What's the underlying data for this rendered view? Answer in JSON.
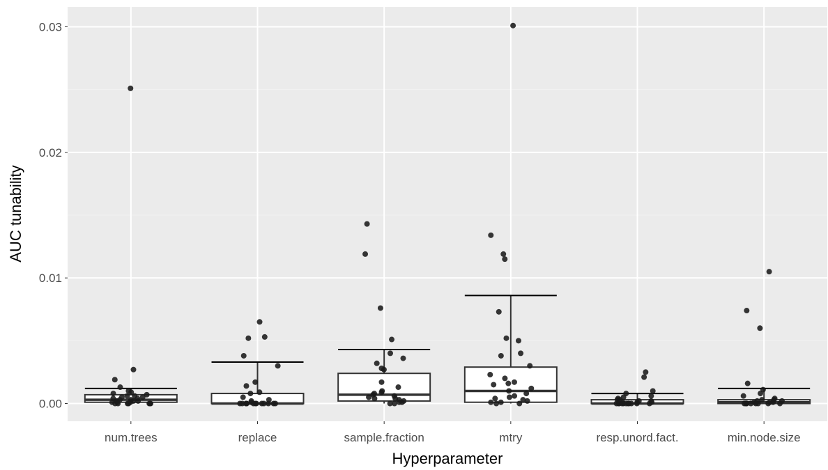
{
  "chart_data": {
    "type": "boxplot",
    "title": "",
    "xlabel": "Hyperparameter",
    "ylabel": "AUC tunability",
    "ylim": [
      -0.0017,
      0.0319
    ],
    "yticks": [
      0.0,
      0.01,
      0.02,
      0.03
    ],
    "ytick_labels": [
      "0.00",
      "0.01",
      "0.02",
      "0.03"
    ],
    "grid": true,
    "categories": [
      "num.trees",
      "replace",
      "sample.fraction",
      "mtry",
      "resp.unord.fact.",
      "min.node.size"
    ],
    "boxes": [
      {
        "lower_whisker": 0.0,
        "q1": 0.0001,
        "median": 0.0003,
        "q3": 0.0007,
        "upper_whisker": 0.0012
      },
      {
        "lower_whisker": 0.0,
        "q1": 0.0,
        "median": 0.0,
        "q3": 0.0008,
        "upper_whisker": 0.0033
      },
      {
        "lower_whisker": 0.0,
        "q1": 0.0002,
        "median": 0.0007,
        "q3": 0.0024,
        "upper_whisker": 0.0043
      },
      {
        "lower_whisker": 0.0,
        "q1": 0.0001,
        "median": 0.001,
        "q3": 0.0029,
        "upper_whisker": 0.0086
      },
      {
        "lower_whisker": 0.0,
        "q1": 0.0,
        "median": 0.0,
        "q3": 0.0003,
        "upper_whisker": 0.0008
      },
      {
        "lower_whisker": 0.0,
        "q1": 0.0,
        "median": 0.0001,
        "q3": 0.0003,
        "upper_whisker": 0.0012
      }
    ],
    "points": [
      [
        0.0251,
        0.0027,
        0.0019,
        0.0013,
        0.001,
        0.0009,
        0.0008,
        0.0007,
        0.0006,
        0.0006,
        0.0005,
        0.0005,
        0.0004,
        0.0004,
        0.0003,
        0.0003,
        0.0002,
        0.0002,
        0.0002,
        0.0001,
        0.0001,
        0.0001,
        0.0,
        0.0,
        0.0,
        0.0,
        0.0,
        0.0,
        0.0
      ],
      [
        0.0065,
        0.0053,
        0.0052,
        0.0038,
        0.003,
        0.0017,
        0.0014,
        0.0009,
        0.0008,
        0.0005,
        0.0003,
        0.0002,
        0.0001,
        0.0,
        0.0,
        0.0,
        0.0,
        0.0,
        0.0,
        0.0,
        0.0,
        0.0,
        0.0,
        0.0,
        0.0,
        0.0
      ],
      [
        0.0143,
        0.0119,
        0.0076,
        0.0051,
        0.004,
        0.0036,
        0.0032,
        0.0028,
        0.0027,
        0.0017,
        0.0013,
        0.001,
        0.0009,
        0.0008,
        0.0007,
        0.0006,
        0.0005,
        0.0004,
        0.0004,
        0.0003,
        0.0002,
        0.0001,
        0.0001,
        0.0,
        0.0
      ],
      [
        0.0301,
        0.0134,
        0.0119,
        0.0115,
        0.0073,
        0.0052,
        0.005,
        0.004,
        0.0038,
        0.003,
        0.0023,
        0.002,
        0.0017,
        0.0016,
        0.0015,
        0.0012,
        0.001,
        0.0008,
        0.0006,
        0.0005,
        0.0004,
        0.0003,
        0.0002,
        0.0001,
        0.0001,
        0.0,
        0.0
      ],
      [
        0.0025,
        0.0021,
        0.001,
        0.0008,
        0.0006,
        0.0005,
        0.0004,
        0.0003,
        0.0003,
        0.0002,
        0.0002,
        0.0001,
        0.0001,
        0.0001,
        0.0,
        0.0,
        0.0,
        0.0,
        0.0,
        0.0,
        0.0,
        0.0,
        0.0,
        0.0,
        0.0
      ],
      [
        0.0105,
        0.0074,
        0.006,
        0.0016,
        0.0011,
        0.0008,
        0.0006,
        0.0004,
        0.0003,
        0.0003,
        0.0002,
        0.0002,
        0.0001,
        0.0001,
        0.0001,
        0.0,
        0.0,
        0.0,
        0.0,
        0.0,
        0.0,
        0.0,
        0.0,
        0.0
      ]
    ],
    "colors": {
      "panel_background": "#ebebeb",
      "grid_major": "#ffffff",
      "grid_minor": "#f2f2f2",
      "box_fill": "#ffffff",
      "box_line": "#333333",
      "point": "#1a1a1a"
    }
  }
}
